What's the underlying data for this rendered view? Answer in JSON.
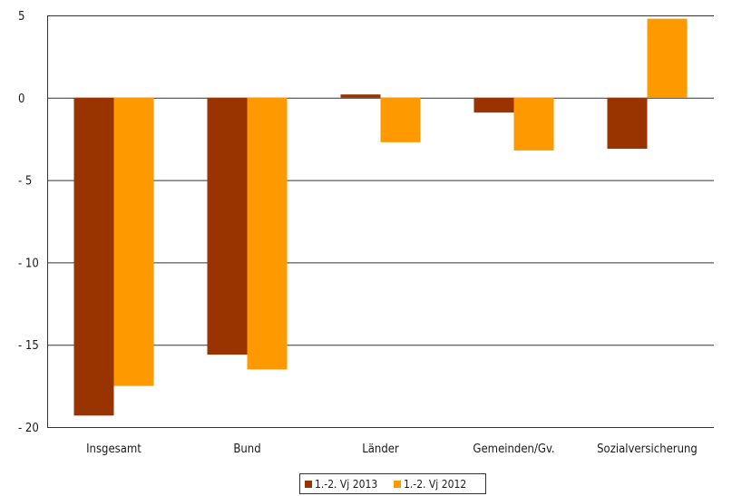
{
  "chart_data": {
    "type": "bar",
    "categories": [
      "Insgesamt",
      "Bund",
      "Länder",
      "Gemeinden/Gv.",
      "Sozialversicherung"
    ],
    "series": [
      {
        "name": "1.-2. Vj 2013",
        "color": "#993300",
        "values": [
          -19.3,
          -15.6,
          0.2,
          -0.9,
          -3.1
        ]
      },
      {
        "name": "1.-2. Vj 2012",
        "color": "#ff9900",
        "values": [
          -17.5,
          -16.5,
          -2.7,
          -3.2,
          4.8
        ]
      }
    ],
    "yticks": [
      5,
      0,
      -5,
      -10,
      -15,
      -20
    ],
    "ytick_labels": [
      "5",
      "0",
      "- 5",
      "- 10",
      "- 15",
      "- 20"
    ],
    "ylim": [
      -20,
      5
    ],
    "title": "",
    "xlabel": "",
    "ylabel": "",
    "grid": "horizontal",
    "legend_position": "bottom"
  }
}
